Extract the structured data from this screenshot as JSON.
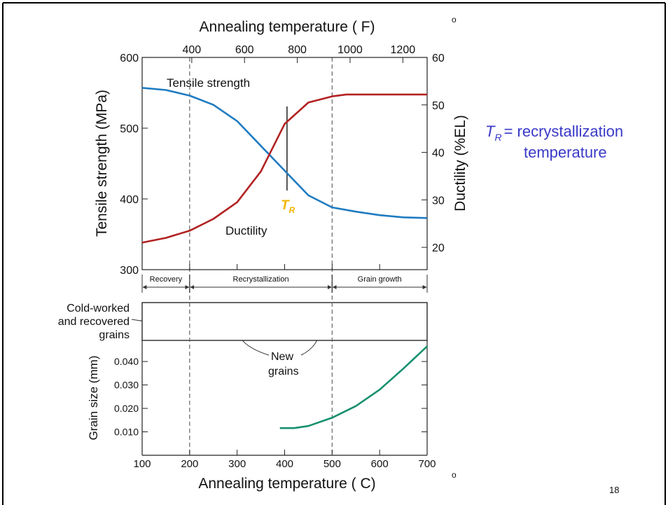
{
  "chart_data": [
    {
      "type": "line",
      "title": "Annealing temperature ( F)",
      "title_degree": "o",
      "xlim": [
        100,
        700
      ],
      "x2lim": [
        212,
        1292
      ],
      "x2ticks": [
        400,
        600,
        800,
        1000,
        1200
      ],
      "ylabel": "Tensile strength (MPa)",
      "ylim": [
        300,
        600
      ],
      "yticks": [
        300,
        400,
        500,
        600
      ],
      "y2label": "Ductility (%EL)",
      "y2lim": [
        15.3,
        60
      ],
      "y2ticks": [
        20,
        30,
        40,
        50,
        60
      ],
      "series": [
        {
          "name": "Tensile strength",
          "color": "#1f7bc1",
          "x": [
            100,
            150,
            200,
            250,
            300,
            350,
            400,
            450,
            500,
            550,
            600,
            650,
            700
          ],
          "values": [
            557,
            554,
            546,
            533,
            510,
            475,
            440,
            405,
            388,
            382,
            377,
            374,
            373
          ]
        },
        {
          "name": "Ductility",
          "color": "#b22222",
          "axis": "y2",
          "x": [
            100,
            150,
            200,
            250,
            300,
            350,
            400,
            450,
            500,
            530,
            700
          ],
          "values": [
            21,
            22,
            23.5,
            26,
            29.5,
            36,
            46,
            50.5,
            51.8,
            52.2,
            52.2
          ]
        }
      ],
      "tr_symbol": "T",
      "tr_subscript": "R",
      "tr_x": 405,
      "boundaries": [
        200,
        500
      ],
      "regions": [
        {
          "label": "Recovery",
          "start": 100,
          "end": 200
        },
        {
          "label": "Recrystallization",
          "start": 200,
          "end": 500
        },
        {
          "label": "Grain growth",
          "start": 500,
          "end": 700
        }
      ],
      "micrograph_labels": {
        "cold_worked": [
          "Cold-worked",
          "and recovered",
          "grains"
        ],
        "new_grains": [
          "New",
          "grains"
        ]
      }
    },
    {
      "type": "line",
      "xlabel": "Annealing temperature ( C)",
      "xlabel_degree": "o",
      "xlim": [
        100,
        700
      ],
      "xticks": [
        100,
        200,
        300,
        400,
        500,
        600,
        700
      ],
      "ylabel": "Grain size (mm)",
      "ylim": [
        0,
        0.049
      ],
      "yticks": [
        {
          "value": 0.01,
          "label": "0.010"
        },
        {
          "value": 0.02,
          "label": "0.020"
        },
        {
          "value": 0.03,
          "label": "0.030"
        },
        {
          "value": 0.04,
          "label": "0.040"
        }
      ],
      "series": [
        {
          "color": "#15906e",
          "x": [
            390,
            420,
            450,
            500,
            550,
            600,
            650,
            700
          ],
          "values": [
            0.0116,
            0.0116,
            0.0125,
            0.016,
            0.021,
            0.028,
            0.037,
            0.0465
          ]
        }
      ]
    }
  ],
  "note": {
    "symbol": "T",
    "subscript": "R",
    "text": "= recrystallization",
    "text2": "temperature"
  },
  "page_number": "18"
}
